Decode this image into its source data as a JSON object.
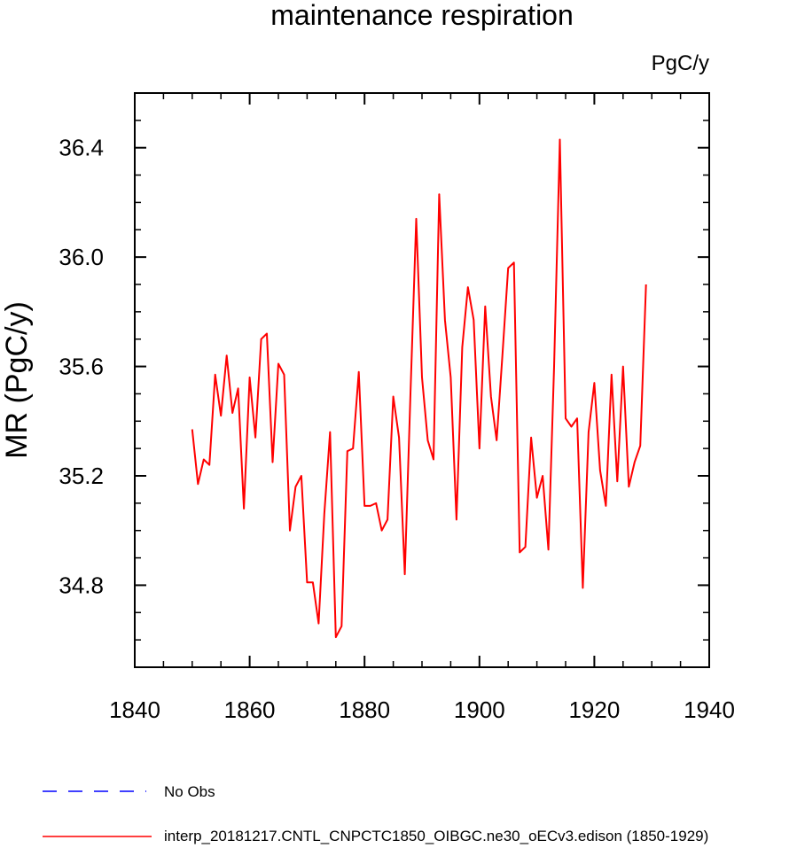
{
  "chart_data": {
    "type": "line",
    "title": "maintenance respiration",
    "units_label": "PgC/y",
    "ylabel": "MR  (PgC/y)",
    "xlabel": "",
    "xlim": [
      1840,
      1940
    ],
    "ylim": [
      34.5,
      36.6
    ],
    "xticks": [
      1840,
      1860,
      1880,
      1900,
      1920,
      1940
    ],
    "xtick_labels": [
      "1840",
      "1860",
      "1880",
      "1900",
      "1920",
      "1940"
    ],
    "yticks": [
      34.8,
      35.2,
      35.6,
      36.0,
      36.4
    ],
    "ytick_labels": [
      "34.8",
      "35.2",
      "35.6",
      "36.0",
      "36.4"
    ],
    "x_minor_step": 5,
    "y_minor_step": 0.1,
    "grid": false,
    "legend_position": "bottom",
    "series": [
      {
        "name": "interp_20181217.CNTL_CNPCTC1850_OIBGC.ne30_oECv3.edison (1850-1929)",
        "color": "#ff0000",
        "dash": "solid",
        "x": [
          1850,
          1851,
          1852,
          1853,
          1854,
          1855,
          1856,
          1857,
          1858,
          1859,
          1860,
          1861,
          1862,
          1863,
          1864,
          1865,
          1866,
          1867,
          1868,
          1869,
          1870,
          1871,
          1872,
          1873,
          1874,
          1875,
          1876,
          1877,
          1878,
          1879,
          1880,
          1881,
          1882,
          1883,
          1884,
          1885,
          1886,
          1887,
          1888,
          1889,
          1890,
          1891,
          1892,
          1893,
          1894,
          1895,
          1896,
          1897,
          1898,
          1899,
          1900,
          1901,
          1902,
          1903,
          1904,
          1905,
          1906,
          1907,
          1908,
          1909,
          1910,
          1911,
          1912,
          1913,
          1914,
          1915,
          1916,
          1917,
          1918,
          1919,
          1920,
          1921,
          1922,
          1923,
          1924,
          1925,
          1926,
          1927,
          1928,
          1929
        ],
        "values": [
          35.37,
          35.17,
          35.26,
          35.24,
          35.57,
          35.42,
          35.64,
          35.43,
          35.52,
          35.08,
          35.56,
          35.34,
          35.7,
          35.72,
          35.25,
          35.61,
          35.57,
          35.0,
          35.16,
          35.2,
          34.81,
          34.81,
          34.66,
          35.06,
          35.36,
          34.61,
          34.65,
          35.29,
          35.3,
          35.58,
          35.09,
          35.09,
          35.1,
          35.0,
          35.04,
          35.49,
          35.34,
          34.84,
          35.5,
          36.14,
          35.56,
          35.33,
          35.26,
          36.23,
          35.77,
          35.56,
          35.04,
          35.67,
          35.89,
          35.77,
          35.3,
          35.82,
          35.49,
          35.33,
          35.64,
          35.96,
          35.98,
          34.92,
          34.94,
          35.34,
          35.12,
          35.2,
          34.93,
          35.6,
          36.43,
          35.41,
          35.38,
          35.41,
          34.79,
          35.36,
          35.54,
          35.22,
          35.09,
          35.57,
          35.18,
          35.6,
          35.16,
          35.25,
          35.31,
          35.9
        ]
      },
      {
        "name": "No Obs",
        "color": "#0000ff",
        "dash": "dashed",
        "x": [],
        "values": []
      }
    ]
  }
}
